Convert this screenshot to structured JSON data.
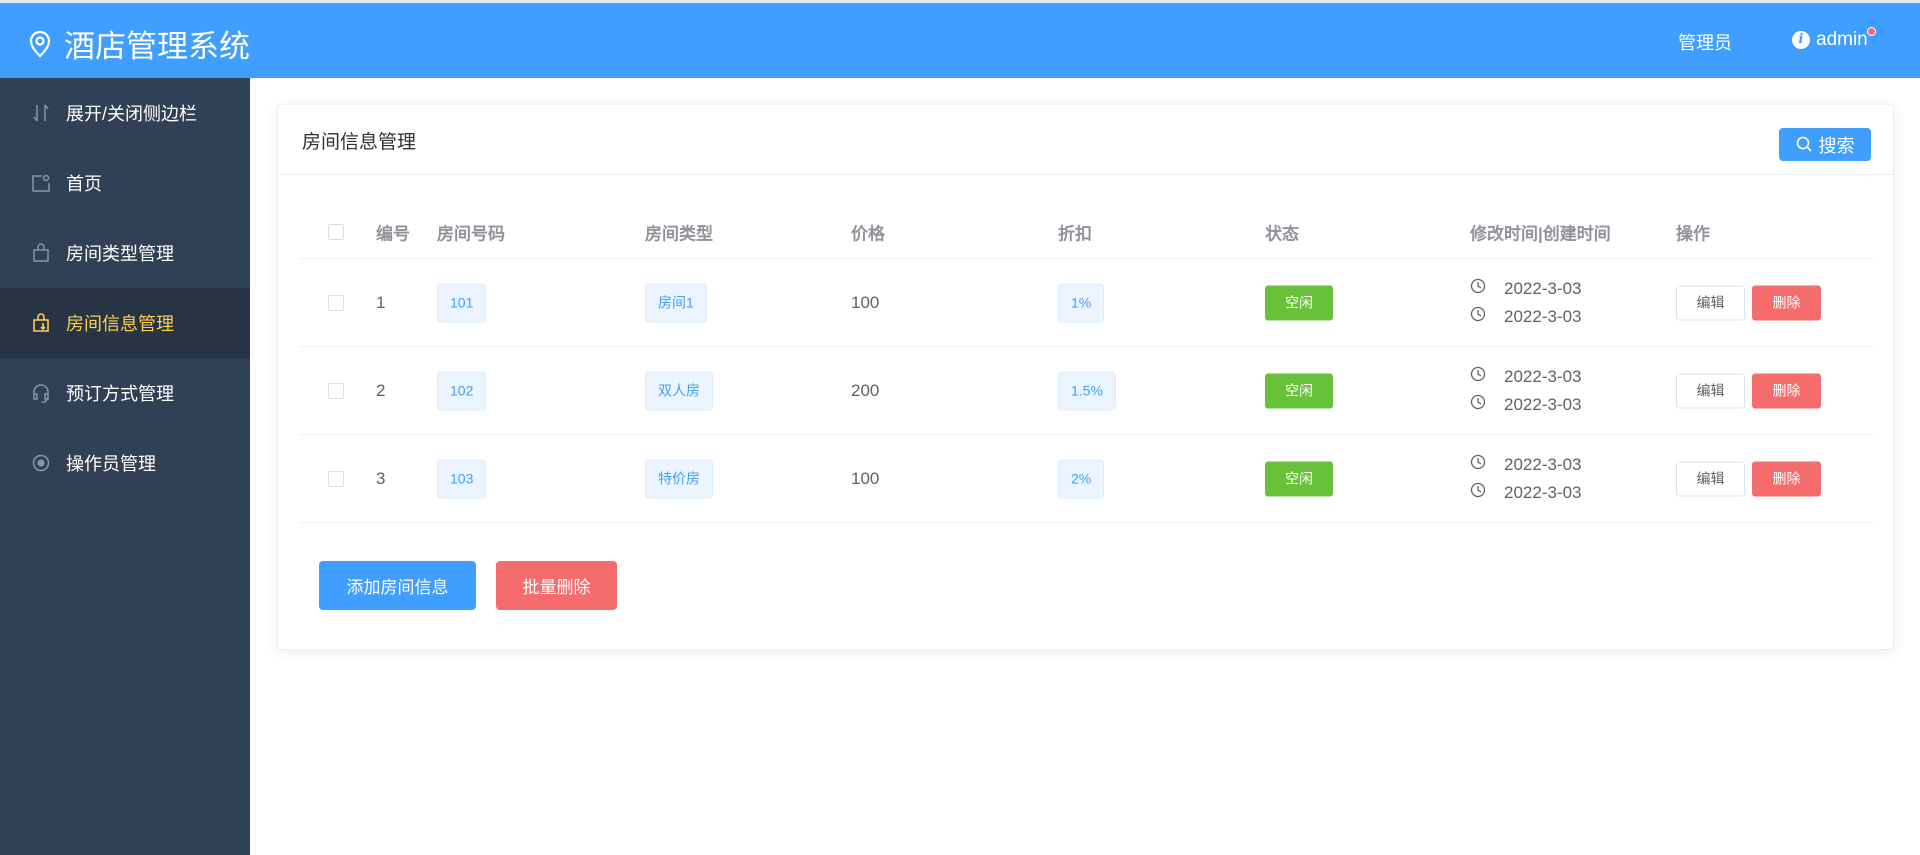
{
  "header": {
    "title": "酒店管理系统",
    "role": "管理员",
    "user": "admin",
    "color": "#409eff"
  },
  "sidebar": {
    "items": [
      {
        "label": "展开/关闭侧边栏",
        "icon": "toggle-icon"
      },
      {
        "label": "首页",
        "icon": "home-icon"
      },
      {
        "label": "房间类型管理",
        "icon": "bag-icon"
      },
      {
        "label": "房间信息管理",
        "icon": "bag-download-icon",
        "active": true
      },
      {
        "label": "预订方式管理",
        "icon": "headset-icon"
      },
      {
        "label": "操作员管理",
        "icon": "gear-icon"
      }
    ]
  },
  "card": {
    "title": "房间信息管理",
    "search_label": "搜索"
  },
  "table": {
    "columns": [
      "编号",
      "房间号码",
      "房间类型",
      "价格",
      "折扣",
      "状态",
      "修改时间|创建时间",
      "操作"
    ],
    "rows": [
      {
        "id": "1",
        "room": "101",
        "type": "房间1",
        "price": "100",
        "discount": "1%",
        "status": "空闲",
        "modified": "2022-3-03",
        "created": "2022-3-03"
      },
      {
        "id": "2",
        "room": "102",
        "type": "双人房",
        "price": "200",
        "discount": "1.5%",
        "status": "空闲",
        "modified": "2022-3-03",
        "created": "2022-3-03"
      },
      {
        "id": "3",
        "room": "103",
        "type": "特价房",
        "price": "100",
        "discount": "2%",
        "status": "空闲",
        "modified": "2022-3-03",
        "created": "2022-3-03"
      }
    ],
    "edit_label": "编辑",
    "delete_label": "删除"
  },
  "actions": {
    "add_label": "添加房间信息",
    "batch_delete_label": "批量删除"
  }
}
